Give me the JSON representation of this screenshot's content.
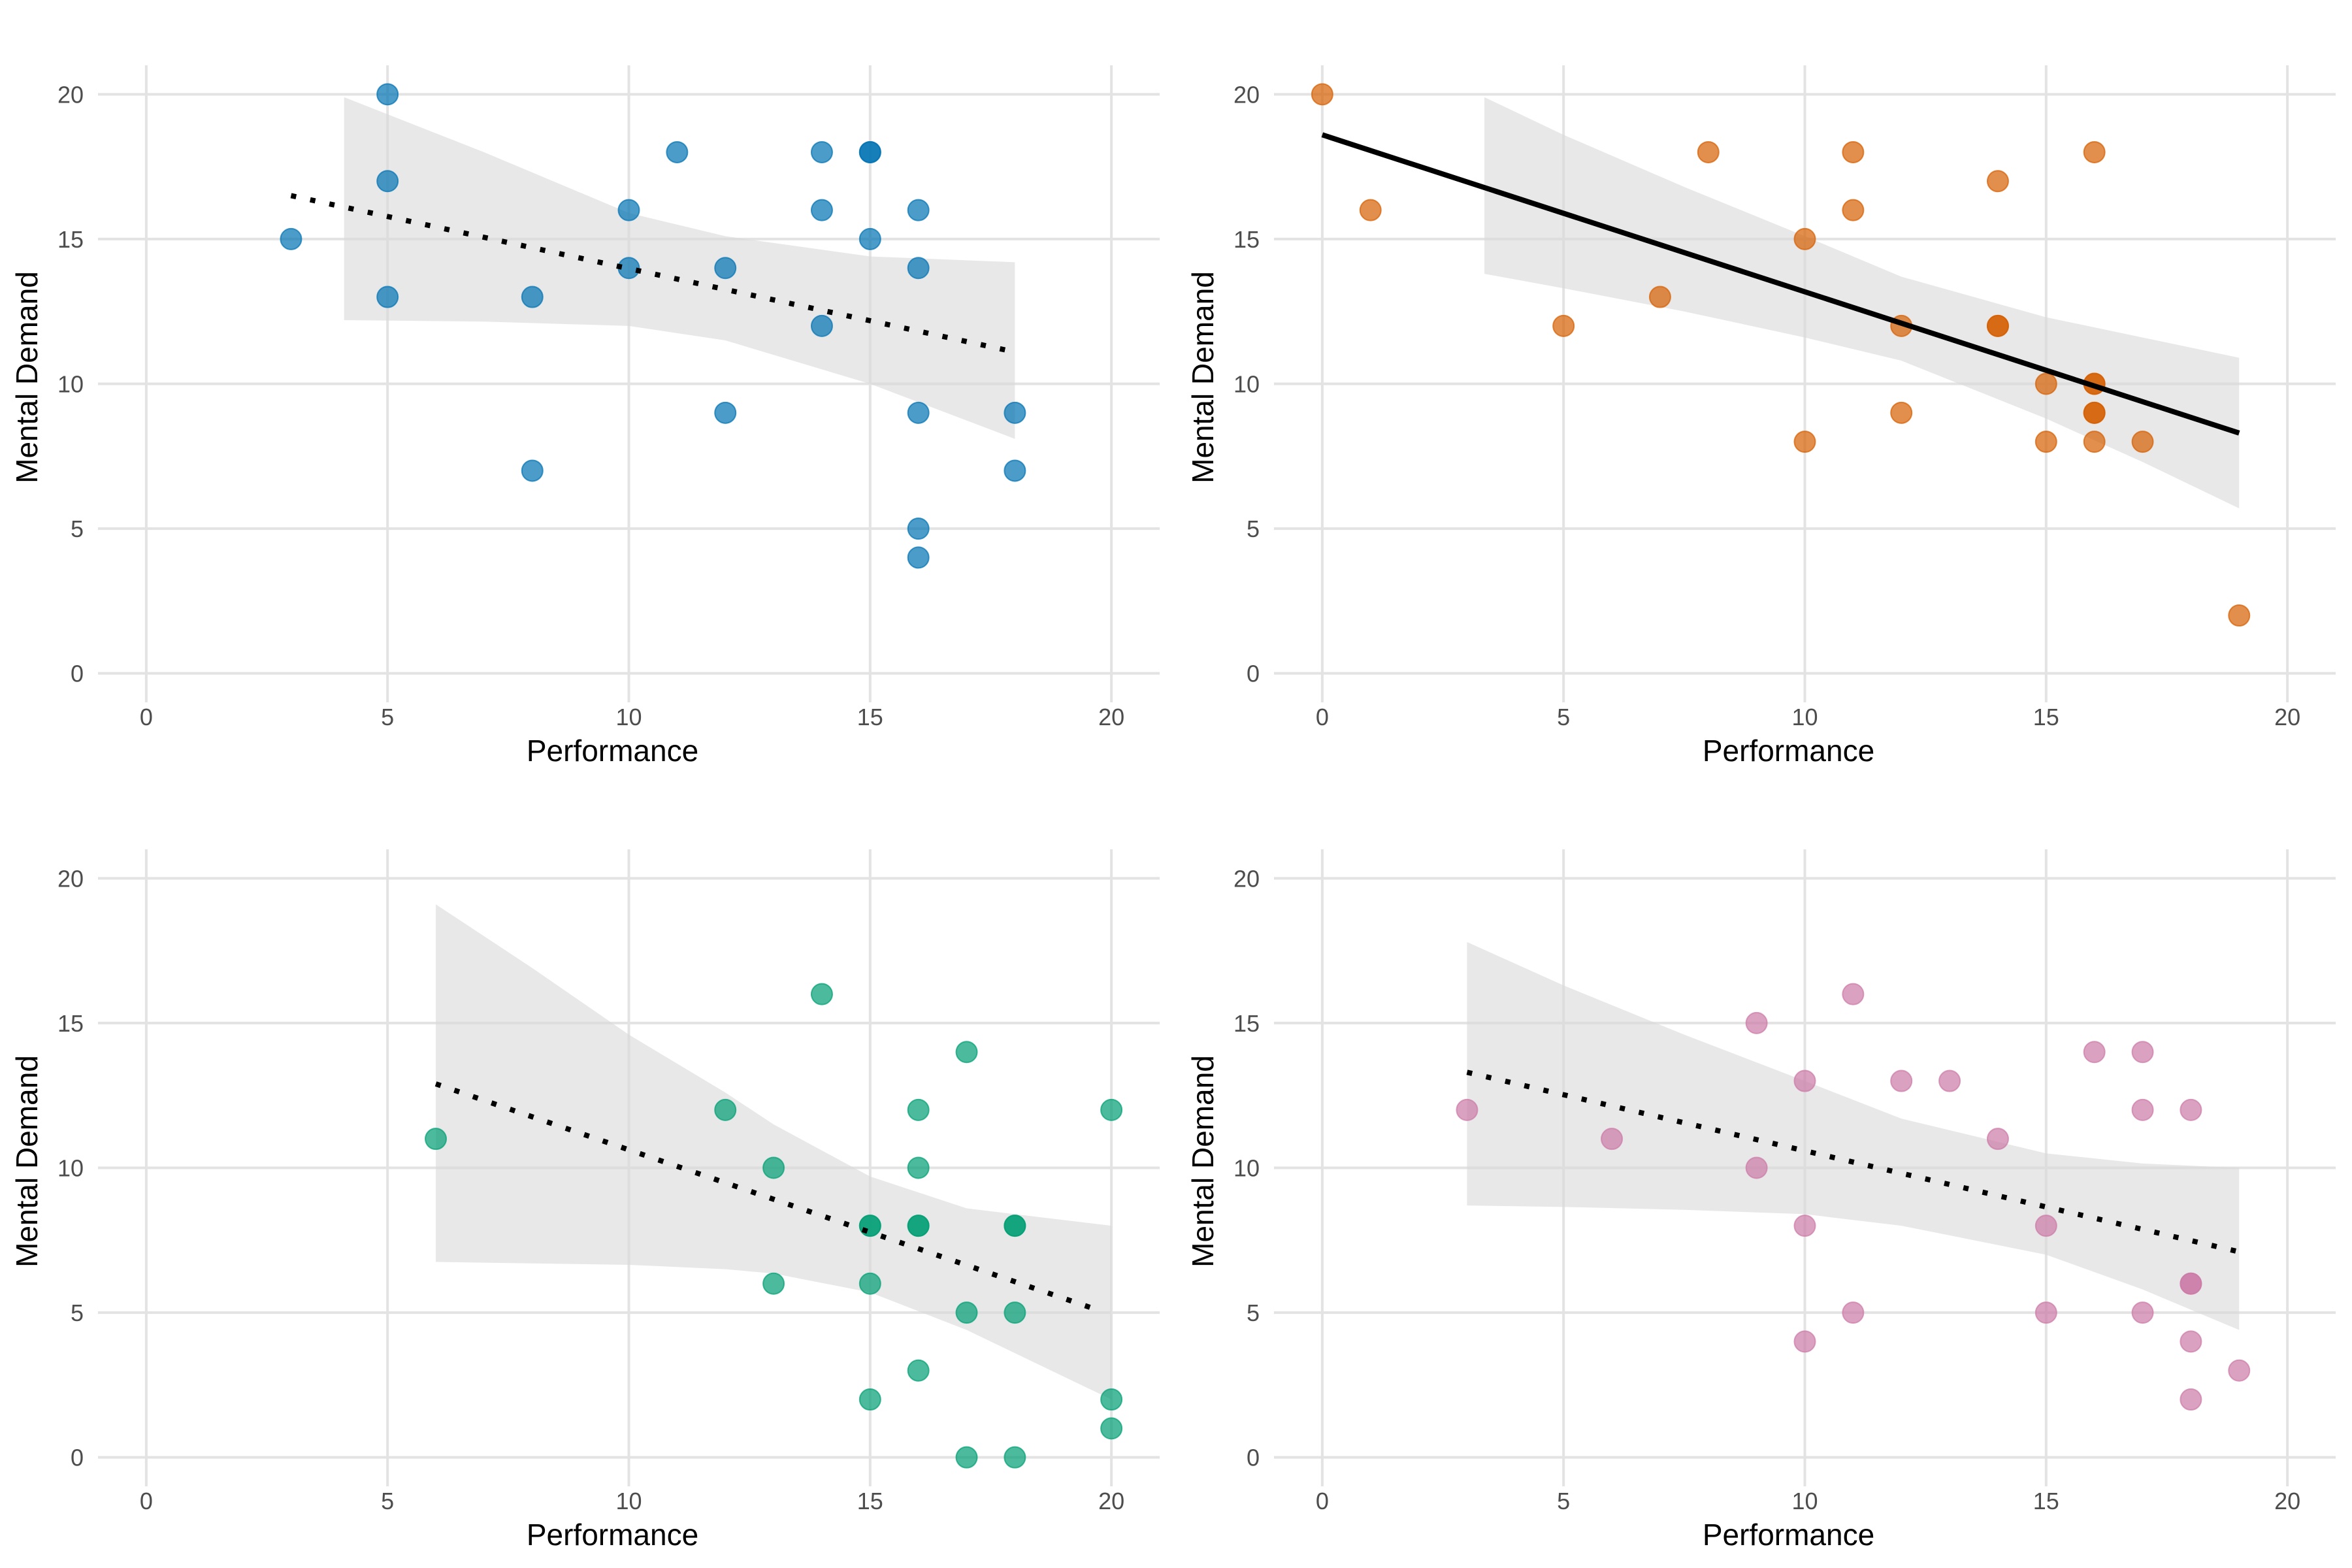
{
  "chart_data": [
    {
      "type": "scatter",
      "xlabel": "Performance",
      "ylabel": "Mental Demand",
      "xlim": [
        -1,
        21
      ],
      "ylim": [
        -1,
        21
      ],
      "xticks": [
        0,
        5,
        10,
        15,
        20
      ],
      "yticks": [
        0,
        5,
        10,
        15,
        20
      ],
      "grid": true,
      "color": "#0072B2",
      "points": [
        [
          3,
          15
        ],
        [
          5,
          20
        ],
        [
          5,
          17
        ],
        [
          5,
          13
        ],
        [
          8,
          13
        ],
        [
          8,
          7
        ],
        [
          10,
          16
        ],
        [
          10,
          14
        ],
        [
          11,
          18
        ],
        [
          12,
          14
        ],
        [
          12,
          9
        ],
        [
          14,
          18
        ],
        [
          14,
          16
        ],
        [
          14,
          12
        ],
        [
          15,
          18
        ],
        [
          15,
          18
        ],
        [
          15,
          15
        ],
        [
          16,
          16
        ],
        [
          16,
          14
        ],
        [
          16,
          9
        ],
        [
          16,
          5
        ],
        [
          16,
          4
        ],
        [
          18,
          9
        ],
        [
          18,
          7
        ]
      ],
      "trend": {
        "style": "dotted",
        "from": [
          3,
          16.5
        ],
        "to": [
          18,
          11.1
        ]
      },
      "ribbon": {
        "x": [
          4.1,
          7,
          10,
          12,
          15,
          18
        ],
        "upper": [
          19.9,
          18.0,
          15.9,
          15.1,
          14.4,
          14.2
        ],
        "lower": [
          12.2,
          12.15,
          12.0,
          11.5,
          10.0,
          8.1
        ]
      }
    },
    {
      "type": "scatter",
      "xlabel": "Performance",
      "ylabel": "Mental Demand",
      "xlim": [
        -1,
        21
      ],
      "ylim": [
        -1,
        21
      ],
      "xticks": [
        0,
        5,
        10,
        15,
        20
      ],
      "yticks": [
        0,
        5,
        10,
        15,
        20
      ],
      "grid": true,
      "color": "#D55E00",
      "points": [
        [
          0,
          20
        ],
        [
          1,
          16
        ],
        [
          5,
          12
        ],
        [
          7,
          13
        ],
        [
          8,
          18
        ],
        [
          10,
          15
        ],
        [
          10,
          8
        ],
        [
          11,
          18
        ],
        [
          11,
          16
        ],
        [
          12,
          12
        ],
        [
          12,
          9
        ],
        [
          14,
          17
        ],
        [
          14,
          12
        ],
        [
          14,
          12
        ],
        [
          15,
          10
        ],
        [
          15,
          8
        ],
        [
          16,
          18
        ],
        [
          16,
          10
        ],
        [
          16,
          10
        ],
        [
          16,
          9
        ],
        [
          16,
          9
        ],
        [
          16,
          8
        ],
        [
          17,
          8
        ],
        [
          19,
          2
        ]
      ],
      "trend": {
        "style": "solid",
        "from": [
          0,
          18.6
        ],
        "to": [
          19,
          8.3
        ]
      },
      "ribbon": {
        "x": [
          3.36,
          5,
          7.5,
          10,
          12,
          15,
          17,
          19
        ],
        "upper": [
          19.9,
          18.6,
          16.8,
          15.1,
          13.7,
          12.3,
          11.6,
          10.9
        ],
        "lower": [
          13.8,
          13.3,
          12.5,
          11.6,
          10.8,
          8.8,
          7.3,
          5.7
        ]
      }
    },
    {
      "type": "scatter",
      "xlabel": "Performance",
      "ylabel": "Mental Demand",
      "xlim": [
        -1,
        21
      ],
      "ylim": [
        -1,
        21
      ],
      "xticks": [
        0,
        5,
        10,
        15,
        20
      ],
      "yticks": [
        0,
        5,
        10,
        15,
        20
      ],
      "grid": true,
      "color": "#009E73",
      "points": [
        [
          6,
          11
        ],
        [
          12,
          12
        ],
        [
          13,
          10
        ],
        [
          13,
          6
        ],
        [
          14,
          16
        ],
        [
          15,
          8
        ],
        [
          15,
          8
        ],
        [
          15,
          6
        ],
        [
          15,
          2
        ],
        [
          16,
          12
        ],
        [
          16,
          10
        ],
        [
          16,
          8
        ],
        [
          16,
          8
        ],
        [
          16,
          3
        ],
        [
          17,
          14
        ],
        [
          17,
          5
        ],
        [
          17,
          0
        ],
        [
          18,
          8
        ],
        [
          18,
          8
        ],
        [
          18,
          5
        ],
        [
          18,
          0
        ],
        [
          20,
          12
        ],
        [
          20,
          2
        ],
        [
          20,
          1
        ]
      ],
      "trend": {
        "style": "dotted",
        "from": [
          6,
          12.9
        ],
        "to": [
          19.7,
          5.1
        ]
      },
      "ribbon": {
        "x": [
          6,
          8,
          10,
          12,
          13,
          15,
          17,
          20
        ],
        "upper": [
          19.1,
          16.9,
          14.6,
          12.6,
          11.5,
          9.7,
          8.6,
          8.0
        ],
        "lower": [
          6.75,
          6.7,
          6.65,
          6.5,
          6.35,
          5.7,
          4.4,
          2.0
        ]
      }
    },
    {
      "type": "scatter",
      "xlabel": "Performance",
      "ylabel": "Mental Demand",
      "xlim": [
        -1,
        21
      ],
      "ylim": [
        -1,
        21
      ],
      "xticks": [
        0,
        5,
        10,
        15,
        20
      ],
      "yticks": [
        0,
        5,
        10,
        15,
        20
      ],
      "grid": true,
      "color": "#CC79A7",
      "points": [
        [
          3,
          12
        ],
        [
          6,
          11
        ],
        [
          9,
          15
        ],
        [
          9,
          10
        ],
        [
          10,
          13
        ],
        [
          10,
          8
        ],
        [
          10,
          4
        ],
        [
          11,
          16
        ],
        [
          11,
          5
        ],
        [
          12,
          13
        ],
        [
          13,
          13
        ],
        [
          14,
          11
        ],
        [
          15,
          8
        ],
        [
          15,
          5
        ],
        [
          16,
          14
        ],
        [
          17,
          14
        ],
        [
          17,
          12
        ],
        [
          17,
          5
        ],
        [
          18,
          12
        ],
        [
          18,
          6
        ],
        [
          18,
          6
        ],
        [
          18,
          4
        ],
        [
          18,
          2
        ],
        [
          19,
          3
        ]
      ],
      "trend": {
        "style": "dotted",
        "from": [
          3,
          13.3
        ],
        "to": [
          19,
          7.1
        ]
      },
      "ribbon": {
        "x": [
          3,
          5,
          7.5,
          10,
          12,
          15,
          17,
          19
        ],
        "upper": [
          17.8,
          16.3,
          14.6,
          13.0,
          11.7,
          10.5,
          10.15,
          10.0
        ],
        "lower": [
          8.7,
          8.65,
          8.55,
          8.4,
          8.0,
          7.0,
          5.8,
          4.4
        ]
      }
    }
  ]
}
